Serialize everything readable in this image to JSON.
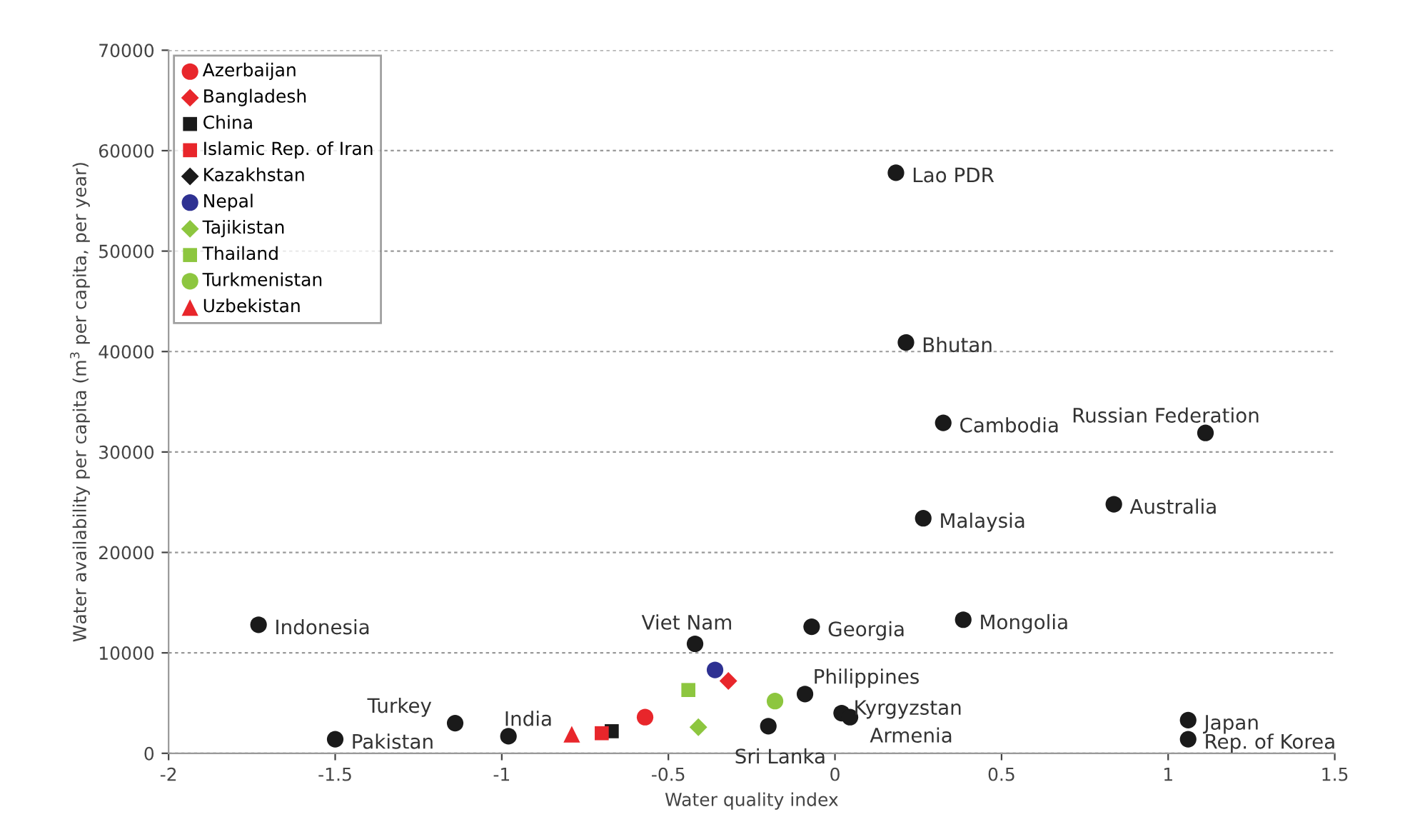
{
  "chart_data": {
    "type": "scatter",
    "xlabel": "Water quality index",
    "ylabel": "Water availability per capita (m$^{3}$ per capita, per year)",
    "xlim": [
      -2,
      1.5
    ],
    "xticks": [
      -2,
      -1.5,
      -1,
      -0.5,
      0,
      0.5,
      1,
      1.5
    ],
    "ylim": [
      0,
      70000
    ],
    "yticks": [
      0,
      10000,
      20000,
      30000,
      40000,
      50000,
      60000,
      70000
    ],
    "grid": "y",
    "legend": "top left",
    "series": [
      {
        "name": "Azerbaijan",
        "color": "#e8262b",
        "marker": "circle",
        "x": [
          -0.57
        ],
        "values": [
          3600
        ]
      },
      {
        "name": "Bangladesh",
        "color": "#e8262b",
        "marker": "diamond",
        "x": [
          -0.32
        ],
        "values": [
          7200
        ]
      },
      {
        "name": "China",
        "color": "#1a1a1a",
        "marker": "square",
        "x": [
          -0.67
        ],
        "values": [
          2200
        ]
      },
      {
        "name": "Islamic Rep. of Iran",
        "color": "#e8262b",
        "marker": "square",
        "x": [
          -0.7
        ],
        "values": [
          2000
        ]
      },
      {
        "name": "Kazakhstan",
        "color": "#1a1a1a",
        "marker": "diamond",
        "x": [
          null
        ],
        "values": [
          null
        ]
      },
      {
        "name": "Nepal",
        "color": "#2e3192",
        "marker": "circle",
        "x": [
          -0.36
        ],
        "values": [
          8300
        ]
      },
      {
        "name": "Tajikistan",
        "color": "#8dc63f",
        "marker": "diamond",
        "x": [
          -0.41
        ],
        "values": [
          2600
        ]
      },
      {
        "name": "Thailand",
        "color": "#8dc63f",
        "marker": "square",
        "x": [
          -0.44
        ],
        "values": [
          6300
        ]
      },
      {
        "name": "Turkmenistan",
        "color": "#8dc63f",
        "marker": "circle",
        "x": [
          -0.18
        ],
        "values": [
          5200
        ]
      },
      {
        "name": "Uzbekistan",
        "color": "#e8262b",
        "marker": "triangle",
        "x": [
          -0.79
        ],
        "values": [
          1900
        ]
      },
      {
        "color": "#1a1a1a",
        "marker": "circle",
        "x": [
          -1.73,
          -1.5,
          -1.14,
          -0.98,
          -0.42,
          -0.2,
          -0.09,
          0.02,
          0.045,
          -0.07,
          0.385,
          1.06,
          1.06,
          0.183,
          0.213,
          0.325,
          1.112,
          0.265,
          0.837
        ],
        "values": [
          12800,
          1400,
          3000,
          1700,
          10900,
          2700,
          5900,
          4000,
          3600,
          12600,
          13300,
          3300,
          1400,
          57800,
          40900,
          32900,
          31900,
          23400,
          24800
        ]
      }
    ],
    "annotations": [
      {
        "text": "Indonesia",
        "x": -1.73,
        "y": 12800
      },
      {
        "text": "Pakistan",
        "x": -1.5,
        "y": 1400
      },
      {
        "text": "Turkey",
        "x": -1.14,
        "y": 3000
      },
      {
        "text": "India",
        "x": -0.98,
        "y": 1700
      },
      {
        "text": "Viet Nam",
        "x": -0.42,
        "y": 10900
      },
      {
        "text": "Sri Lanka",
        "x": -0.2,
        "y": 2700
      },
      {
        "text": "Philippines",
        "x": -0.09,
        "y": 5900
      },
      {
        "text": "Kyrgyzstan",
        "x": 0.02,
        "y": 4000
      },
      {
        "text": "Armenia",
        "x": 0.045,
        "y": 3600
      },
      {
        "text": "Georgia",
        "x": -0.07,
        "y": 12600
      },
      {
        "text": "Mongolia",
        "x": 0.385,
        "y": 13300
      },
      {
        "text": "Japan",
        "x": 1.06,
        "y": 3300
      },
      {
        "text": "Rep. of Korea",
        "x": 1.06,
        "y": 1400
      },
      {
        "text": "Lao PDR",
        "x": 0.183,
        "y": 57800
      },
      {
        "text": "Bhutan",
        "x": 0.213,
        "y": 40900
      },
      {
        "text": "Cambodia",
        "x": 0.325,
        "y": 32900
      },
      {
        "text": "Russian Federation",
        "x": 1.112,
        "y": 31900
      },
      {
        "text": "Malaysia",
        "x": 0.265,
        "y": 23400
      },
      {
        "text": "Australia",
        "x": 0.837,
        "y": 24800
      }
    ]
  }
}
